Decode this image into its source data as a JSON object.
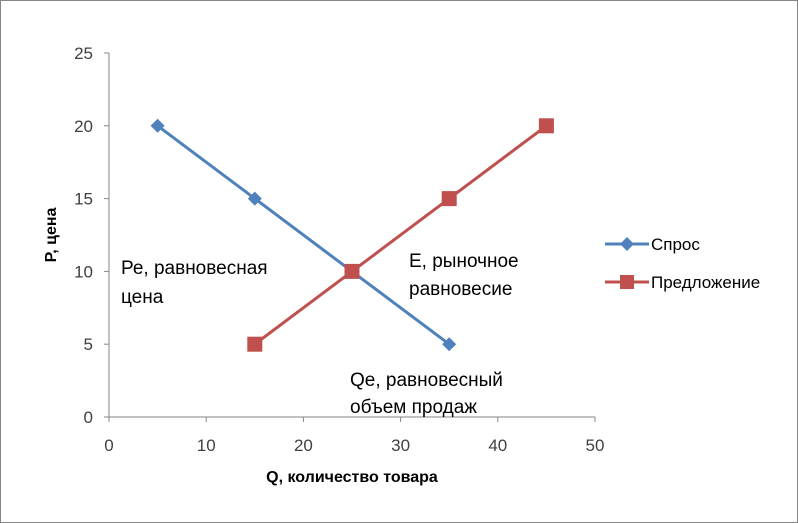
{
  "chart_data": {
    "type": "line",
    "xlabel": "Q, количество товара",
    "ylabel": "P, цена",
    "xlim": [
      0,
      50
    ],
    "ylim": [
      0,
      25
    ],
    "x_ticks": [
      "0",
      "10",
      "20",
      "30",
      "40",
      "50"
    ],
    "y_ticks": [
      "0",
      "5",
      "10",
      "15",
      "20",
      "25"
    ],
    "grid": false,
    "legend_position": "right",
    "series": [
      {
        "name": "Спрос",
        "color": "#4F81BD",
        "marker": "diamond",
        "x": [
          5,
          15,
          25,
          35
        ],
        "y": [
          20,
          15,
          10,
          5
        ]
      },
      {
        "name": "Предложение",
        "color": "#C0504D",
        "marker": "square",
        "x": [
          15,
          25,
          35,
          45
        ],
        "y": [
          5,
          10,
          15,
          20
        ]
      }
    ],
    "annotations": [
      {
        "lines": [
          "Ре, равновесная",
          "цена"
        ]
      },
      {
        "lines": [
          "Е, рыночное",
          "равновесие"
        ]
      },
      {
        "lines": [
          "Qе, равновесный",
          "объем продаж"
        ]
      }
    ]
  }
}
